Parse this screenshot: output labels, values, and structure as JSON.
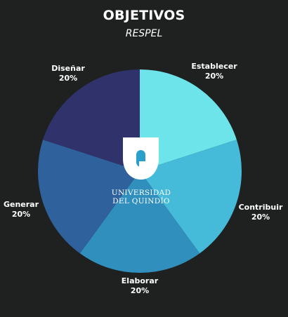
{
  "header": {
    "title": "OBJETIVOS",
    "subtitle": "RESPEL"
  },
  "logo": {
    "line1": "UNIVERSIDAD",
    "line2": "DEL QUINDÍO"
  },
  "chart_data": {
    "type": "pie",
    "title": "OBJETIVOS",
    "subtitle": "RESPEL",
    "categories": [
      "Establecer",
      "Contribuir",
      "Elaborar",
      "Generar",
      "Diseñar"
    ],
    "values": [
      20,
      20,
      20,
      20,
      20
    ],
    "value_labels": [
      "20%",
      "20%",
      "20%",
      "20%",
      "20%"
    ],
    "colors": [
      "#6ce4ea",
      "#45bbd9",
      "#318fbe",
      "#2f619c",
      "#2f326b"
    ],
    "start": "12 o'clock",
    "direction": "clockwise"
  }
}
